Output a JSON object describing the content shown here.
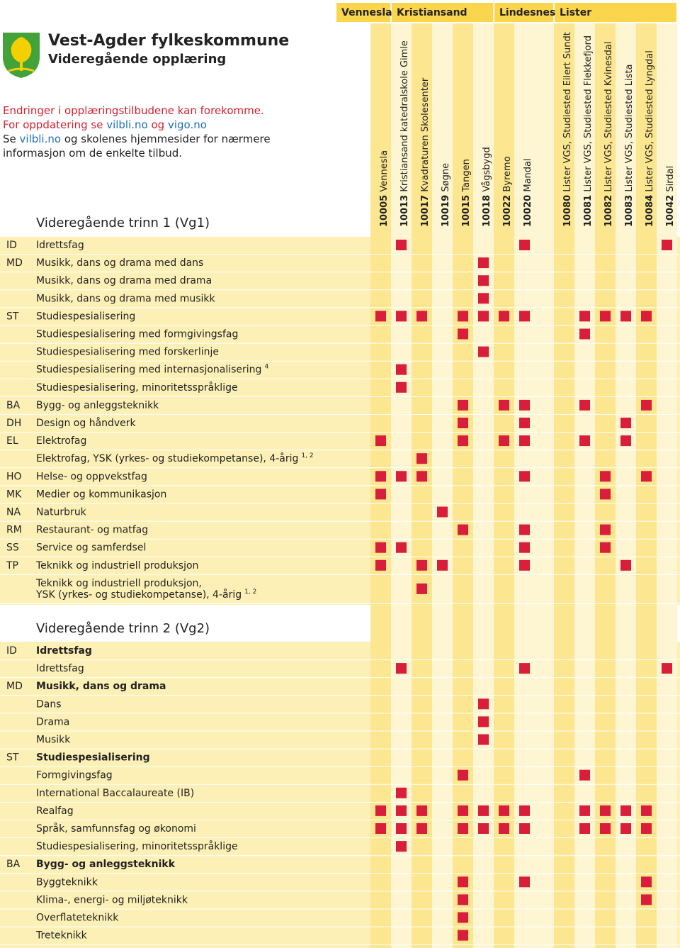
{
  "header": {
    "title": "Vest-Agder fylkeskommune",
    "subtitle": "Videregående opplæring",
    "notice": [
      [
        {
          "text": "Endringer i opplæringstilbudene kan forekomme.",
          "color": "#d6202f"
        }
      ],
      [
        {
          "text": "For oppdatering se ",
          "color": "#d6202f"
        },
        {
          "text": "vilbli.no",
          "color": "#1f6fb8"
        },
        {
          "text": " og ",
          "color": "#d6202f"
        },
        {
          "text": "vigo.no",
          "color": "#1f6fb8"
        }
      ],
      [
        {
          "text": "Se ",
          "color": "#222"
        },
        {
          "text": "vilbli.no",
          "color": "#1f6fb8"
        },
        {
          "text": " og skolenes hjemmesider for nærmere",
          "color": "#222"
        }
      ],
      [
        {
          "text": "informasjon om de enkelte tilbud.",
          "color": "#222"
        }
      ]
    ]
  },
  "groups": [
    {
      "name": "Vennesla",
      "schools": [
        {
          "code": "10005",
          "name": "Vennesla"
        }
      ]
    },
    {
      "name": "Kristiansand",
      "schools": [
        {
          "code": "10013",
          "name": "Kristiansand katedralskole Gimle"
        },
        {
          "code": "10017",
          "name": "Kvadraturen Skolesenter"
        },
        {
          "code": "10019",
          "name": "Søgne"
        },
        {
          "code": "10015",
          "name": "Tangen"
        },
        {
          "code": "10018",
          "name": "Vågsbygd"
        }
      ]
    },
    {
      "name": "Lindesnes",
      "schools": [
        {
          "code": "10022",
          "name": "Byremo"
        },
        {
          "code": "10020",
          "name": "Mandal"
        }
      ]
    },
    {
      "name": "Lister",
      "schools": [
        {
          "code": "10080",
          "name": "Lister VGS, Studiested Eilert Sundt"
        },
        {
          "code": "10081",
          "name": "Lister VGS, Studiested Flekkefjord"
        },
        {
          "code": "10082",
          "name": "Lister VGS, Studiested Kvinesdal"
        },
        {
          "code": "10083",
          "name": "Lister VGS, Studiested Lista"
        },
        {
          "code": "10084",
          "name": "Lister VGS, Studiested Lyngdal"
        },
        {
          "code": "10042",
          "name": "Sirdal"
        }
      ]
    }
  ],
  "sections": [
    {
      "title": "Videregående trinn 1 (Vg1)",
      "rows": [
        {
          "code": "ID",
          "label": [
            "Idrettsfag"
          ],
          "marks": [
            1,
            7,
            13
          ]
        },
        {
          "code": "MD",
          "label": [
            "Musikk, dans og drama med dans"
          ],
          "marks": [
            5
          ]
        },
        {
          "label": [
            "Musikk, dans og drama med drama"
          ],
          "marks": [
            5
          ]
        },
        {
          "label": [
            "Musikk, dans og drama med musikk"
          ],
          "marks": [
            5
          ]
        },
        {
          "code": "ST",
          "label": [
            "Studiespesialisering"
          ],
          "marks": [
            0,
            1,
            2,
            4,
            5,
            6,
            7,
            9,
            10,
            11,
            12
          ]
        },
        {
          "label": [
            "Studiespesialisering med formgivingsfag"
          ],
          "marks": [
            4,
            9
          ]
        },
        {
          "label": [
            "Studiespesialisering med forskerlinje"
          ],
          "marks": [
            5
          ]
        },
        {
          "label": [
            "Studiespesialisering med internasjonalisering"
          ],
          "note": "4",
          "marks": [
            1
          ]
        },
        {
          "label": [
            "Studiespesialisering, minoritetsspråklige"
          ],
          "marks": [
            1
          ]
        },
        {
          "code": "BA",
          "label": [
            "Bygg- og anleggsteknikk"
          ],
          "marks": [
            4,
            6,
            7,
            9,
            12
          ]
        },
        {
          "code": "DH",
          "label": [
            "Design og håndverk"
          ],
          "marks": [
            4,
            7,
            11
          ]
        },
        {
          "code": "EL",
          "label": [
            "Elektrofag"
          ],
          "marks": [
            0,
            4,
            6,
            7,
            9,
            11
          ]
        },
        {
          "label": [
            "Elektrofag, YSK (yrkes- og studiekompetanse), 4-årig"
          ],
          "note": "1, 2",
          "marks": [
            2
          ]
        },
        {
          "code": "HO",
          "label": [
            "Helse- og oppvekstfag"
          ],
          "marks": [
            0,
            1,
            2,
            7,
            10,
            12
          ]
        },
        {
          "code": "MK",
          "label": [
            "Medier og kommunikasjon"
          ],
          "marks": [
            0,
            10
          ]
        },
        {
          "code": "NA",
          "label": [
            "Naturbruk"
          ],
          "marks": [
            3
          ]
        },
        {
          "code": "RM",
          "label": [
            "Restaurant- og matfag"
          ],
          "marks": [
            4,
            7,
            10
          ]
        },
        {
          "code": "SS",
          "label": [
            "Service og samferdsel"
          ],
          "marks": [
            0,
            1,
            7,
            10
          ]
        },
        {
          "code": "TP",
          "label": [
            "Teknikk og industriell produksjon"
          ],
          "marks": [
            0,
            2,
            3,
            7,
            11
          ]
        },
        {
          "label": [
            "Teknikk og industriell produksjon,",
            "YSK (yrkes- og studiekompetanse), 4-årig"
          ],
          "note": "1, 2",
          "marks": [
            2
          ]
        }
      ]
    },
    {
      "title": "Videregående trinn 2 (Vg2)",
      "rows": [
        {
          "code": "ID",
          "label": [
            "Idrettsfag"
          ],
          "bold": true,
          "marks": []
        },
        {
          "label": [
            "Idrettsfag"
          ],
          "marks": [
            1,
            7,
            13
          ]
        },
        {
          "code": "MD",
          "label": [
            "Musikk, dans og drama"
          ],
          "bold": true,
          "marks": []
        },
        {
          "label": [
            "Dans"
          ],
          "marks": [
            5
          ]
        },
        {
          "label": [
            "Drama"
          ],
          "marks": [
            5
          ]
        },
        {
          "label": [
            "Musikk"
          ],
          "marks": [
            5
          ]
        },
        {
          "code": "ST",
          "label": [
            "Studiespesialisering"
          ],
          "bold": true,
          "marks": []
        },
        {
          "label": [
            "Formgivingsfag"
          ],
          "marks": [
            4,
            9
          ]
        },
        {
          "label": [
            "International Baccalaureate (IB)"
          ],
          "marks": [
            1
          ]
        },
        {
          "label": [
            "Realfag"
          ],
          "marks": [
            0,
            1,
            2,
            4,
            5,
            6,
            7,
            9,
            10,
            11,
            12
          ]
        },
        {
          "label": [
            "Språk, samfunnsfag og økonomi"
          ],
          "marks": [
            0,
            1,
            2,
            4,
            5,
            6,
            7,
            9,
            10,
            11,
            12
          ]
        },
        {
          "label": [
            "Studiespesialisering, minoritetsspråklige"
          ],
          "marks": [
            1
          ]
        },
        {
          "code": "BA",
          "label": [
            "Bygg- og anleggsteknikk"
          ],
          "bold": true,
          "marks": []
        },
        {
          "label": [
            "Byggteknikk"
          ],
          "marks": [
            4,
            7,
            12
          ]
        },
        {
          "label": [
            "Klima-, energi- og miljøteknikk"
          ],
          "marks": [
            4,
            12
          ]
        },
        {
          "label": [
            "Overflateteknikk"
          ],
          "marks": [
            4
          ]
        },
        {
          "label": [
            "Treteknikk"
          ],
          "marks": [
            4
          ]
        }
      ]
    }
  ]
}
